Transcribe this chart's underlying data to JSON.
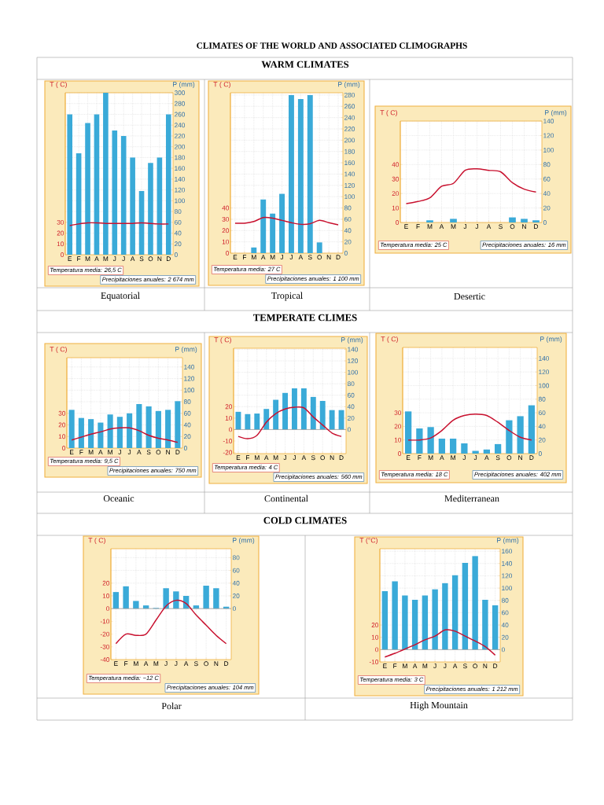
{
  "chart_data": [
    {
      "type": "other",
      "title": "CLIMATES OF THE WORLD AND ASSOCIATED CLIMOGRAPHS",
      "annotations": [
        "WARM CLIMATES",
        "TEMPERATE CLIMES",
        "COLD CLIMATES"
      ]
    },
    {
      "type": "bar",
      "title": "Equatorial",
      "ylabel": "T ( C)",
      "y2label": "P (mm)",
      "categories": [
        "E",
        "F",
        "M",
        "A",
        "M",
        "J",
        "J",
        "A",
        "S",
        "O",
        "N",
        "D"
      ],
      "ylim": [
        0,
        150
      ],
      "yticks": [
        0,
        10,
        20,
        30
      ],
      "y2lim": [
        0,
        300
      ],
      "y2ticks": [
        0,
        20,
        40,
        60,
        80,
        100,
        120,
        140,
        160,
        180,
        200,
        220,
        240,
        260,
        280,
        300
      ],
      "grid": true,
      "series": [
        {
          "type": "bar",
          "axis": "y2",
          "color": "#3aaad8",
          "values": [
            260,
            188,
            244,
            260,
            300,
            230,
            220,
            180,
            118,
            170,
            180,
            260
          ]
        },
        {
          "type": "line",
          "color": "#c8102e",
          "values": [
            27,
            28.5,
            29.5,
            29.5,
            29,
            29,
            29,
            29,
            29.5,
            29,
            28.5,
            28.5
          ]
        }
      ],
      "annotations": [
        "Temperatura media: 26,5 C",
        "Precipitaciones anuales: 2 674 mm"
      ]
    },
    {
      "type": "bar",
      "title": "Tropical",
      "ylabel": "T ( C)",
      "y2label": "P (mm)",
      "categories": [
        "E",
        "F",
        "M",
        "A",
        "M",
        "J",
        "J",
        "A",
        "S",
        "O",
        "N",
        "D"
      ],
      "ylim": [
        0,
        142
      ],
      "yticks": [
        0,
        10,
        20,
        30,
        40
      ],
      "y2lim": [
        0,
        284
      ],
      "y2ticks": [
        0,
        20,
        40,
        60,
        80,
        100,
        120,
        140,
        160,
        180,
        200,
        220,
        240,
        260,
        280
      ],
      "grid": true,
      "series": [
        {
          "type": "bar",
          "axis": "y2",
          "color": "#3aaad8",
          "values": [
            0,
            0,
            10,
            95,
            70,
            105,
            280,
            273,
            280,
            19,
            0,
            0
          ]
        },
        {
          "type": "line",
          "color": "#c8102e",
          "values": [
            26.5,
            26.5,
            28,
            31.5,
            31,
            29,
            27,
            25.5,
            26,
            29,
            27,
            25
          ]
        }
      ],
      "annotations": [
        "Temperatura media: 27 C",
        "Precipitaciones anuales: 1 100 mm"
      ]
    },
    {
      "type": "bar",
      "title": "Desertic",
      "ylabel": "T ( C)",
      "y2label": "P (mm)",
      "categories": [
        "E",
        "F",
        "M",
        "A",
        "M",
        "J",
        "J",
        "A",
        "S",
        "O",
        "N",
        "D"
      ],
      "ylim": [
        0,
        70
      ],
      "yticks": [
        0,
        10,
        20,
        30,
        40
      ],
      "y2lim": [
        0,
        140
      ],
      "y2ticks": [
        0,
        20,
        40,
        60,
        80,
        100,
        120,
        140
      ],
      "grid": true,
      "series": [
        {
          "type": "bar",
          "axis": "y2",
          "color": "#3aaad8",
          "values": [
            0,
            0,
            3,
            0,
            5,
            0,
            0,
            0,
            0,
            7,
            5,
            3
          ]
        },
        {
          "type": "line",
          "color": "#c8102e",
          "values": [
            13,
            14.5,
            17,
            25,
            27,
            36,
            37,
            36,
            35,
            27.5,
            23,
            21
          ]
        }
      ],
      "annotations": [
        "Temperatura media: 25 C",
        "Precipitaciones anuales: 16 mm"
      ]
    },
    {
      "type": "bar",
      "title": "Oceanic",
      "ylabel": "T ( C)",
      "y2label": "P (mm)",
      "categories": [
        "E",
        "F",
        "M",
        "A",
        "M",
        "J",
        "J",
        "A",
        "S",
        "O",
        "N",
        "D"
      ],
      "ylim": [
        0,
        78
      ],
      "yticks": [
        0,
        10,
        20,
        30
      ],
      "y2lim": [
        0,
        156
      ],
      "y2ticks": [
        0,
        20,
        40,
        60,
        80,
        100,
        120,
        140
      ],
      "grid": true,
      "series": [
        {
          "type": "bar",
          "axis": "y2",
          "color": "#3aaad8",
          "values": [
            66,
            52,
            50,
            44,
            58,
            54,
            60,
            76,
            72,
            64,
            66,
            81
          ]
        },
        {
          "type": "line",
          "color": "#c8102e",
          "values": [
            7,
            9.5,
            12,
            14,
            16.5,
            17.5,
            17.5,
            15,
            11,
            8.5,
            7,
            5
          ]
        }
      ],
      "annotations": [
        "Temperatura media: 9,5 C",
        "Precipitaciones anuales: 750 mm"
      ]
    },
    {
      "type": "bar",
      "title": "Continental",
      "ylabel": "T ( C)",
      "y2label": "P (mm)",
      "categories": [
        "E",
        "F",
        "M",
        "A",
        "M",
        "J",
        "J",
        "A",
        "S",
        "O",
        "N",
        "D"
      ],
      "ylim": [
        -21,
        71
      ],
      "yticks": [
        -20,
        -10,
        0,
        10,
        20
      ],
      "y2lim": [
        -42,
        142
      ],
      "y2ticks": [
        0,
        20,
        40,
        60,
        80,
        100,
        120,
        140
      ],
      "grid": true,
      "ref_lines": [
        {
          "axis": "y2",
          "value": 0,
          "color": "#9a9a9a"
        }
      ],
      "series": [
        {
          "type": "bar",
          "axis": "y2",
          "color": "#3aaad8",
          "values": [
            31,
            27,
            28,
            36,
            52,
            64,
            72,
            72,
            57,
            50,
            34,
            34
          ]
        },
        {
          "type": "line",
          "color": "#c8102e",
          "values": [
            -6,
            -8,
            -5,
            6.5,
            14,
            18,
            19.5,
            19,
            11,
            4,
            -3,
            -6
          ]
        }
      ],
      "annotations": [
        "Temperatura media: 4 C",
        "Precipitaciones anuales: 560 mm"
      ]
    },
    {
      "type": "bar",
      "title": "Mediterranean",
      "ylabel": "T ( C)",
      "y2label": "P (mm)",
      "categories": [
        "E",
        "F",
        "M",
        "A",
        "M",
        "J",
        "J",
        "A",
        "S",
        "O",
        "N",
        "D"
      ],
      "ylim": [
        0,
        78
      ],
      "yticks": [
        0,
        10,
        20,
        30
      ],
      "y2lim": [
        0,
        156
      ],
      "y2ticks": [
        0,
        20,
        40,
        60,
        80,
        100,
        120,
        140
      ],
      "grid": true,
      "series": [
        {
          "type": "bar",
          "axis": "y2",
          "color": "#3aaad8",
          "values": [
            62,
            37,
            39,
            22,
            22,
            15,
            4,
            6,
            14,
            49,
            55,
            71
          ]
        },
        {
          "type": "line",
          "color": "#c8102e",
          "values": [
            10,
            10,
            11.5,
            17,
            24.5,
            28,
            29,
            28,
            23,
            17,
            12,
            10
          ]
        }
      ],
      "annotations": [
        "Temperatura media: 18 C",
        "Precipitaciones anuales: 402 mm"
      ]
    },
    {
      "type": "bar",
      "title": "Polar",
      "ylabel": "T ( C)",
      "y2label": "P (mm)",
      "categories": [
        "E",
        "F",
        "M",
        "A",
        "M",
        "J",
        "J",
        "A",
        "S",
        "O",
        "N",
        "D"
      ],
      "ylim": [
        -40,
        47
      ],
      "yticks": [
        -40,
        -30,
        -20,
        -10,
        0,
        10,
        20
      ],
      "y2lim": [
        -80,
        94
      ],
      "y2ticks": [
        0,
        20,
        40,
        60,
        80
      ],
      "grid": true,
      "ref_lines": [
        {
          "axis": "y2",
          "value": 0,
          "color": "#9a9a9a"
        }
      ],
      "series": [
        {
          "type": "bar",
          "axis": "y2",
          "color": "#3aaad8",
          "values": [
            26,
            35,
            12,
            5,
            1,
            32,
            27,
            20,
            5,
            36,
            32,
            3
          ]
        },
        {
          "type": "line",
          "color": "#c8102e",
          "values": [
            -27.5,
            -20,
            -21,
            -20,
            -9,
            2,
            6.5,
            4,
            -5,
            -13,
            -21,
            -27.5
          ]
        }
      ],
      "annotations": [
        "Temperatura media: −12 C",
        "Precipitaciones anuales: 104 mm"
      ]
    },
    {
      "type": "bar",
      "title": "High Mountain",
      "ylabel": "T (°C)",
      "y2label": "P (mm)",
      "categories": [
        "E",
        "F",
        "M",
        "A",
        "M",
        "J",
        "J",
        "A",
        "S",
        "O",
        "N",
        "D"
      ],
      "ylim": [
        -10,
        82
      ],
      "yticks": [
        -10,
        0,
        10,
        20
      ],
      "y2lim": [
        -20,
        164
      ],
      "y2ticks": [
        0,
        20,
        40,
        60,
        80,
        100,
        120,
        140,
        160
      ],
      "grid": true,
      "ref_lines": [
        {
          "axis": "y2",
          "value": 0,
          "color": "#9a9a9a"
        }
      ],
      "series": [
        {
          "type": "bar",
          "axis": "y2",
          "color": "#3aaad8",
          "values": [
            95,
            111,
            88,
            81,
            88,
            98,
            108,
            121,
            141,
            152,
            81,
            72
          ]
        },
        {
          "type": "line",
          "color": "#c8102e",
          "values": [
            -6,
            -3,
            0.5,
            4,
            8,
            11,
            16,
            15,
            11,
            7,
            2.5,
            -4.5
          ]
        }
      ],
      "annotations": [
        "Temperatura media: 3 C",
        "Precipitaciones anuales: 1 212 mm"
      ]
    }
  ]
}
